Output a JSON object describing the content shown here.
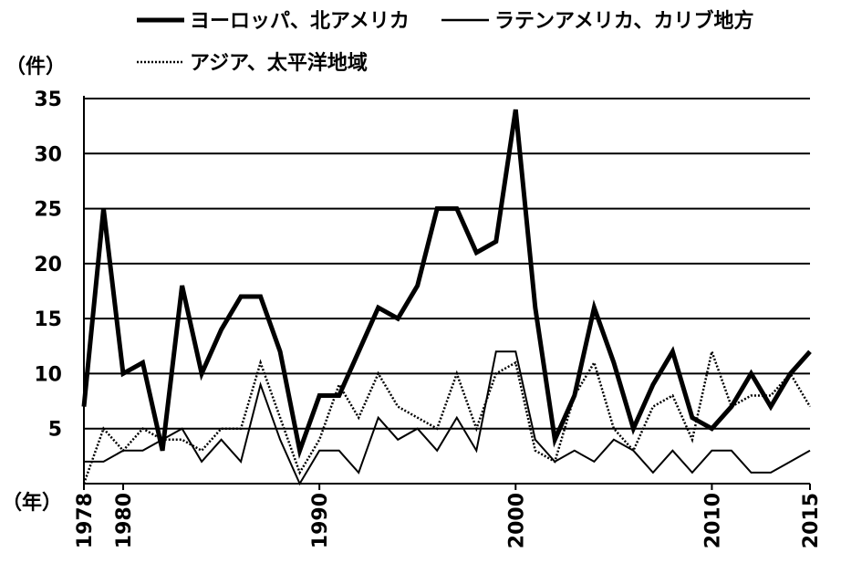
{
  "chart_data": {
    "type": "line",
    "title": "",
    "ylabel": "（件）",
    "xlabel": "（年）",
    "ylim": [
      0,
      35
    ],
    "yticks": [
      5,
      10,
      15,
      20,
      25,
      30,
      35
    ],
    "xlim": [
      1978,
      2015
    ],
    "xticks": [
      1978,
      1980,
      1990,
      2000,
      2010,
      2015
    ],
    "grid": "horizontal",
    "legend_position": "top",
    "x": [
      1978,
      1979,
      1980,
      1981,
      1982,
      1983,
      1984,
      1985,
      1986,
      1987,
      1988,
      1989,
      1990,
      1991,
      1992,
      1993,
      1994,
      1995,
      1996,
      1997,
      1998,
      1999,
      2000,
      2001,
      2002,
      2003,
      2004,
      2005,
      2006,
      2007,
      2008,
      2009,
      2010,
      2011,
      2012,
      2013,
      2014,
      2015
    ],
    "series": [
      {
        "name": "ヨーロッパ、北アメリカ",
        "style": "thick-solid",
        "color": "#000000",
        "values": [
          7,
          25,
          10,
          11,
          3,
          18,
          10,
          14,
          17,
          17,
          12,
          3,
          8,
          8,
          12,
          16,
          15,
          18,
          25,
          25,
          21,
          22,
          34,
          16,
          4,
          8,
          16,
          11,
          5,
          9,
          12,
          6,
          5,
          7,
          10,
          7,
          10,
          12
        ]
      },
      {
        "name": "ラテンアメリカ、カリブ地方",
        "style": "thin-solid",
        "color": "#000000",
        "values": [
          2,
          2,
          3,
          3,
          4,
          5,
          2,
          4,
          2,
          9,
          4,
          0,
          3,
          3,
          1,
          6,
          4,
          5,
          3,
          6,
          3,
          12,
          12,
          4,
          2,
          3,
          2,
          4,
          3,
          1,
          3,
          1,
          3,
          3,
          1,
          1,
          2,
          3
        ]
      },
      {
        "name": "アジア、太平洋地域",
        "style": "dotted",
        "color": "#000000",
        "values": [
          0,
          5,
          3,
          5,
          4,
          4,
          3,
          5,
          5,
          11,
          6,
          1,
          4,
          9,
          6,
          10,
          7,
          6,
          5,
          10,
          5,
          10,
          11,
          3,
          2,
          8,
          11,
          5,
          3,
          7,
          8,
          4,
          12,
          7,
          8,
          8,
          10,
          7
        ]
      }
    ]
  }
}
